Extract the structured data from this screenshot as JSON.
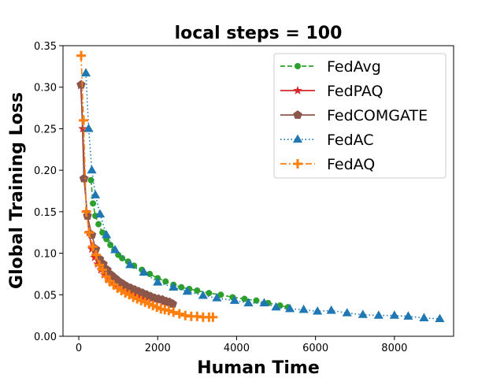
{
  "chart_data": {
    "type": "line",
    "title": "local steps = 100",
    "xlabel": "Human Time",
    "ylabel": "Global Training Loss",
    "xlim": [
      -400,
      9500
    ],
    "ylim": [
      0.0,
      0.35
    ],
    "xticks": [
      0,
      2000,
      4000,
      6000,
      8000
    ],
    "xtick_labels": [
      "0",
      "2000",
      "4000",
      "6000",
      "8000"
    ],
    "yticks": [
      0.0,
      0.05,
      0.1,
      0.15,
      0.2,
      0.25,
      0.3,
      0.35
    ],
    "ytick_labels": [
      "0.00",
      "0.05",
      "0.10",
      "0.15",
      "0.20",
      "0.25",
      "0.30",
      "0.35"
    ],
    "grid": false,
    "legend_position": "top-right",
    "series": [
      {
        "name": "FedAvg",
        "color": "#2ca02c",
        "marker": "circle",
        "dash": "dashed",
        "points": [
          [
            310,
            0.188
          ],
          [
            360,
            0.16
          ],
          [
            420,
            0.145
          ],
          [
            500,
            0.135
          ],
          [
            600,
            0.125
          ],
          [
            700,
            0.117
          ],
          [
            800,
            0.11
          ],
          [
            900,
            0.104
          ],
          [
            1000,
            0.098
          ],
          [
            1100,
            0.094
          ],
          [
            1250,
            0.09
          ],
          [
            1400,
            0.085
          ],
          [
            1600,
            0.08
          ],
          [
            1800,
            0.075
          ],
          [
            2000,
            0.07
          ],
          [
            2200,
            0.066
          ],
          [
            2400,
            0.062
          ],
          [
            2600,
            0.059
          ],
          [
            2800,
            0.057
          ],
          [
            3000,
            0.055
          ],
          [
            3300,
            0.052
          ],
          [
            3600,
            0.05
          ],
          [
            3900,
            0.047
          ],
          [
            4200,
            0.045
          ],
          [
            4500,
            0.043
          ],
          [
            4800,
            0.04
          ],
          [
            5100,
            0.037
          ],
          [
            5300,
            0.035
          ]
        ]
      },
      {
        "name": "FedPAQ",
        "color": "#d62728",
        "marker": "star",
        "dash": "solid",
        "points": [
          [
            50,
            0.302
          ],
          [
            100,
            0.25
          ],
          [
            150,
            0.19
          ],
          [
            200,
            0.15
          ],
          [
            260,
            0.125
          ],
          [
            330,
            0.105
          ],
          [
            400,
            0.095
          ],
          [
            480,
            0.087
          ],
          [
            560,
            0.08
          ],
          [
            650,
            0.074
          ],
          [
            750,
            0.068
          ],
          [
            850,
            0.064
          ],
          [
            950,
            0.06
          ],
          [
            1050,
            0.057
          ],
          [
            1150,
            0.055
          ],
          [
            1250,
            0.053
          ],
          [
            1350,
            0.051
          ],
          [
            1450,
            0.05
          ],
          [
            1550,
            0.049
          ],
          [
            1650,
            0.047
          ],
          [
            1750,
            0.046
          ],
          [
            1850,
            0.045
          ],
          [
            1950,
            0.044
          ],
          [
            2050,
            0.043
          ],
          [
            2150,
            0.041
          ],
          [
            2250,
            0.04
          ],
          [
            2350,
            0.039
          ]
        ]
      },
      {
        "name": "FedCOMGATE",
        "color": "#8c564b",
        "marker": "pentagon",
        "dash": "solid",
        "points": [
          [
            60,
            0.303
          ],
          [
            130,
            0.19
          ],
          [
            220,
            0.145
          ],
          [
            330,
            0.122
          ],
          [
            430,
            0.105
          ],
          [
            530,
            0.093
          ],
          [
            620,
            0.087
          ],
          [
            720,
            0.08
          ],
          [
            820,
            0.074
          ],
          [
            920,
            0.07
          ],
          [
            1020,
            0.066
          ],
          [
            1120,
            0.063
          ],
          [
            1220,
            0.06
          ],
          [
            1320,
            0.058
          ],
          [
            1420,
            0.056
          ],
          [
            1520,
            0.054
          ],
          [
            1620,
            0.052
          ],
          [
            1720,
            0.05
          ],
          [
            1820,
            0.048
          ],
          [
            1920,
            0.046
          ],
          [
            2020,
            0.045
          ],
          [
            2120,
            0.044
          ],
          [
            2220,
            0.042
          ],
          [
            2300,
            0.041
          ],
          [
            2380,
            0.039
          ]
        ]
      },
      {
        "name": "FedAC",
        "color": "#1f77b4",
        "marker": "triangle",
        "dash": "dotted",
        "points": [
          [
            180,
            0.317
          ],
          [
            250,
            0.25
          ],
          [
            330,
            0.2
          ],
          [
            420,
            0.17
          ],
          [
            540,
            0.147
          ],
          [
            700,
            0.122
          ],
          [
            920,
            0.104
          ],
          [
            1300,
            0.086
          ],
          [
            1650,
            0.077
          ],
          [
            2000,
            0.065
          ],
          [
            2400,
            0.059
          ],
          [
            2750,
            0.054
          ],
          [
            3150,
            0.049
          ],
          [
            3500,
            0.046
          ],
          [
            3950,
            0.043
          ],
          [
            4300,
            0.04
          ],
          [
            4700,
            0.04
          ],
          [
            5000,
            0.035
          ],
          [
            5350,
            0.033
          ],
          [
            5700,
            0.032
          ],
          [
            6050,
            0.03
          ],
          [
            6400,
            0.031
          ],
          [
            6800,
            0.028
          ],
          [
            7200,
            0.026
          ],
          [
            7600,
            0.025
          ],
          [
            8000,
            0.025
          ],
          [
            8350,
            0.024
          ],
          [
            8750,
            0.022
          ],
          [
            9150,
            0.021
          ]
        ]
      },
      {
        "name": "FedAQ",
        "color": "#ff7f0e",
        "marker": "plus",
        "dash": "dashdot",
        "points": [
          [
            60,
            0.338
          ],
          [
            120,
            0.26
          ],
          [
            190,
            0.15
          ],
          [
            260,
            0.125
          ],
          [
            350,
            0.108
          ],
          [
            440,
            0.098
          ],
          [
            520,
            0.086
          ],
          [
            600,
            0.08
          ],
          [
            690,
            0.072
          ],
          [
            780,
            0.066
          ],
          [
            880,
            0.062
          ],
          [
            980,
            0.058
          ],
          [
            1080,
            0.055
          ],
          [
            1180,
            0.052
          ],
          [
            1280,
            0.05
          ],
          [
            1380,
            0.047
          ],
          [
            1480,
            0.045
          ],
          [
            1580,
            0.043
          ],
          [
            1680,
            0.041
          ],
          [
            1780,
            0.039
          ],
          [
            1880,
            0.037
          ],
          [
            1980,
            0.035
          ],
          [
            2080,
            0.033
          ],
          [
            2180,
            0.032
          ],
          [
            2280,
            0.031
          ],
          [
            2400,
            0.029
          ],
          [
            2550,
            0.027
          ],
          [
            2700,
            0.025
          ],
          [
            2850,
            0.024
          ],
          [
            3000,
            0.024
          ],
          [
            3150,
            0.023
          ],
          [
            3300,
            0.023
          ],
          [
            3400,
            0.023
          ]
        ]
      }
    ]
  }
}
